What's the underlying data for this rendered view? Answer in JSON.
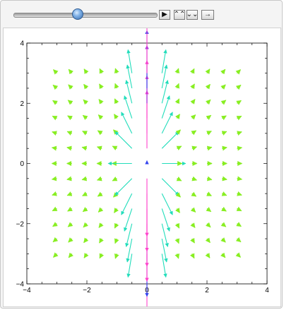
{
  "controls": {
    "slider_value": 0.45,
    "play_icon": "▶",
    "faster_icon": "⌃⌃",
    "slower_icon": "⌄⌄",
    "direction_icon": "→"
  },
  "chart_data": {
    "type": "vector-field",
    "title": "",
    "xlabel": "",
    "ylabel": "",
    "xlim": [
      -4,
      4
    ],
    "ylim": [
      -4,
      4
    ],
    "x_ticks": [
      -4,
      -2,
      0,
      2,
      4
    ],
    "y_ticks": [
      -4,
      -2,
      0,
      2,
      4
    ],
    "tick_labels_x": [
      "−4",
      "−2",
      "0",
      "2",
      "4"
    ],
    "tick_labels_y": [
      "−4",
      "−2",
      "0",
      "2",
      "4"
    ],
    "grid": false,
    "field_domain": {
      "x": [
        -3,
        3
      ],
      "y": [
        -3,
        3
      ],
      "step": 0.5
    },
    "field_description": "radial outward field centred at origin, strong vectors near x=0 radiating outward",
    "colors": {
      "weak": "#88ee22",
      "medium": "#22ddbb",
      "strong": "#ff44cc",
      "accent_blue": "#3344ee",
      "accent_red": "#ee3333",
      "accent_purple": "#9933dd"
    }
  }
}
